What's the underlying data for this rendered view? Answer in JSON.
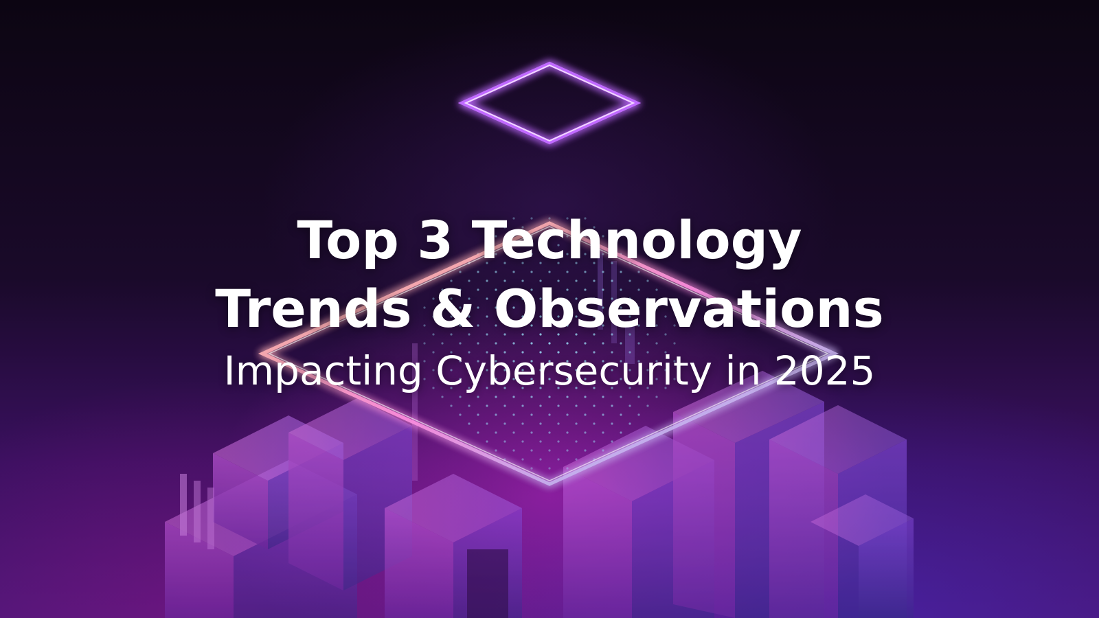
{
  "headline": {
    "line1": "Top 3 Technology",
    "line2": "Trends & Observations",
    "subtitle": "Impacting Cybersecurity in 2025"
  },
  "colors": {
    "neon_top": "#c06bff",
    "neon_main": "#ff7bd8",
    "neon_edge": "#ffd08a",
    "dots": "#9fe7ff",
    "text": "#ffffff"
  }
}
